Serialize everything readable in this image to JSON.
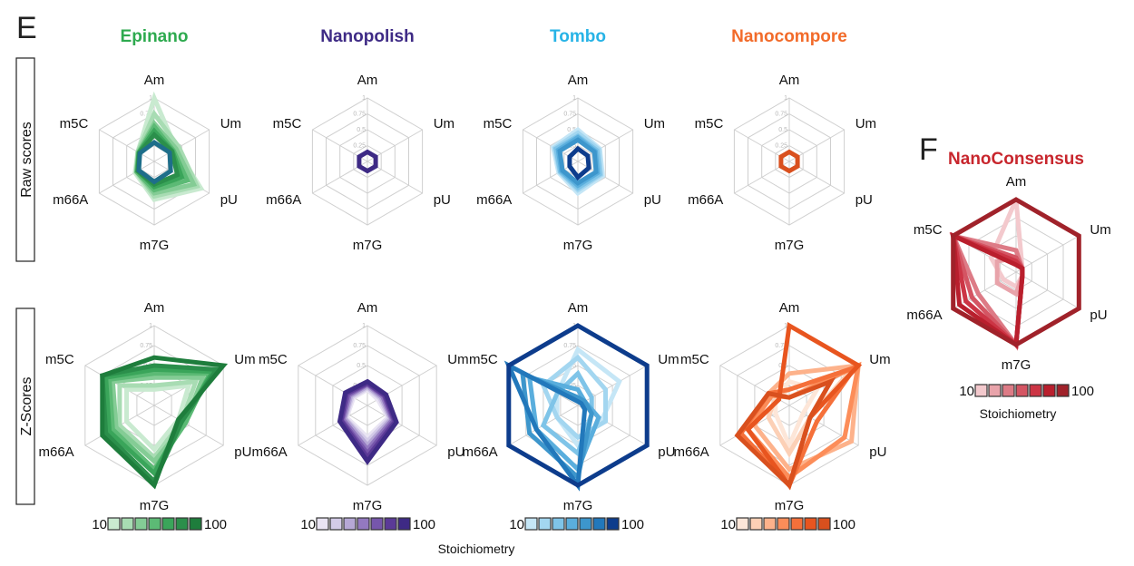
{
  "figure": {
    "panel_e_letter": "E",
    "panel_f_letter": "F",
    "row_labels": [
      "Raw scores",
      "Z-Scores"
    ],
    "stoichiometry_label": "Stoichiometry",
    "nanoconsensus_stoichiometry_label": "Stoichiometry"
  },
  "chart_data": [
    {
      "type": "radar",
      "panel": "E",
      "row": "Raw scores",
      "title": "Epinano",
      "title_color": "#2eaa4f",
      "axes": [
        "Am",
        "Um",
        "pU",
        "m7G",
        "m66A",
        "m5C"
      ],
      "range": [
        0,
        1
      ],
      "ticks": [
        "0.25",
        "0.5",
        "0.75",
        "1"
      ],
      "palette": [
        "#c9ead0",
        "#a8dcb3",
        "#84cc95",
        "#5cba75",
        "#3aa55a",
        "#2b8f4b",
        "#1e6e8a"
      ],
      "series": [
        {
          "values": [
            1.0,
            0.4,
            0.85,
            0.6,
            0.35,
            0.3
          ]
        },
        {
          "values": [
            0.75,
            0.45,
            0.78,
            0.55,
            0.33,
            0.3
          ]
        },
        {
          "values": [
            0.6,
            0.4,
            0.72,
            0.5,
            0.32,
            0.29
          ]
        },
        {
          "values": [
            0.55,
            0.35,
            0.6,
            0.45,
            0.32,
            0.28
          ]
        },
        {
          "values": [
            0.48,
            0.33,
            0.5,
            0.4,
            0.3,
            0.28
          ]
        },
        {
          "values": [
            0.42,
            0.32,
            0.42,
            0.36,
            0.3,
            0.27
          ]
        },
        {
          "values": [
            0.3,
            0.28,
            0.3,
            0.32,
            0.28,
            0.26
          ]
        }
      ]
    },
    {
      "type": "radar",
      "panel": "E",
      "row": "Raw scores",
      "title": "Nanopolish",
      "title_color": "#3e2a85",
      "axes": [
        "Am",
        "Um",
        "pU",
        "m7G",
        "m66A",
        "m5C"
      ],
      "range": [
        0,
        1
      ],
      "ticks": [
        "0.25",
        "0.5",
        "0.75",
        "1"
      ],
      "palette": [
        "#3e2a85"
      ],
      "series": [
        {
          "values": [
            0.15,
            0.15,
            0.15,
            0.15,
            0.15,
            0.15
          ]
        }
      ]
    },
    {
      "type": "radar",
      "panel": "E",
      "row": "Raw scores",
      "title": "Tombo",
      "title_color": "#27b3e6",
      "axes": [
        "Am",
        "Um",
        "pU",
        "m7G",
        "m66A",
        "m5C"
      ],
      "range": [
        0,
        1
      ],
      "ticks": [
        "0.25",
        "0.5",
        "0.75",
        "1"
      ],
      "palette": [
        "#c5e6f6",
        "#a3d6f0",
        "#7fc4e8",
        "#5aaedd",
        "#3d96cc",
        "#0d3c8c"
      ],
      "series": [
        {
          "values": [
            0.5,
            0.4,
            0.45,
            0.5,
            0.35,
            0.45
          ]
        },
        {
          "values": [
            0.45,
            0.38,
            0.42,
            0.45,
            0.33,
            0.42
          ]
        },
        {
          "values": [
            0.4,
            0.35,
            0.4,
            0.42,
            0.32,
            0.4
          ]
        },
        {
          "values": [
            0.38,
            0.32,
            0.36,
            0.38,
            0.3,
            0.36
          ]
        },
        {
          "values": [
            0.34,
            0.3,
            0.33,
            0.34,
            0.28,
            0.33
          ]
        },
        {
          "values": [
            0.2,
            0.18,
            0.2,
            0.25,
            0.15,
            0.15
          ]
        }
      ]
    },
    {
      "type": "radar",
      "panel": "E",
      "row": "Raw scores",
      "title": "Nanocompore",
      "title_color": "#f26b2a",
      "axes": [
        "Am",
        "Um",
        "pU",
        "m7G",
        "m66A",
        "m5C"
      ],
      "range": [
        0,
        1
      ],
      "ticks": [
        "0.25",
        "0.5",
        "0.75",
        "1"
      ],
      "palette": [
        "#d9501e"
      ],
      "series": [
        {
          "values": [
            0.15,
            0.15,
            0.15,
            0.15,
            0.15,
            0.15
          ]
        }
      ]
    },
    {
      "type": "radar",
      "panel": "E",
      "row": "Z-Scores",
      "axes": [
        "Am",
        "Um",
        "pU",
        "m7G",
        "m66A",
        "m5C"
      ],
      "range": [
        0,
        1
      ],
      "ticks": [
        "0.25",
        "0.5",
        "0.75",
        "1"
      ],
      "palette": [
        "#c9ead0",
        "#a8dcb3",
        "#84cc95",
        "#5cba75",
        "#3aa55a",
        "#2b8f4b",
        "#1e7d3c"
      ],
      "series": [
        {
          "values": [
            0.2,
            0.5,
            0.35,
            0.55,
            0.4,
            0.4
          ]
        },
        {
          "values": [
            0.25,
            0.6,
            0.4,
            0.65,
            0.5,
            0.5
          ]
        },
        {
          "values": [
            0.35,
            0.7,
            0.45,
            0.7,
            0.55,
            0.6
          ]
        },
        {
          "values": [
            0.4,
            0.8,
            0.45,
            0.8,
            0.6,
            0.65
          ]
        },
        {
          "values": [
            0.45,
            0.85,
            0.4,
            0.85,
            0.65,
            0.7
          ]
        },
        {
          "values": [
            0.5,
            0.9,
            0.4,
            0.95,
            0.7,
            0.75
          ]
        },
        {
          "values": [
            0.6,
            1.0,
            0.35,
            1.0,
            0.75,
            0.75
          ]
        }
      ]
    },
    {
      "type": "radar",
      "panel": "E",
      "row": "Z-Scores",
      "axes": [
        "Am",
        "Um",
        "pU",
        "m7G",
        "m66A",
        "m5C"
      ],
      "range": [
        0,
        1
      ],
      "ticks": [
        "0.25",
        "0.5",
        "0.75",
        "1"
      ],
      "palette": [
        "#e9e4f3",
        "#d3cbe8",
        "#b6a8d6",
        "#9379c0",
        "#7656ab",
        "#5b3a97",
        "#3e2a85"
      ],
      "series": [
        {
          "values": [
            0.2,
            0.15,
            0.3,
            0.4,
            0.3,
            0.2
          ]
        },
        {
          "values": [
            0.22,
            0.18,
            0.32,
            0.45,
            0.32,
            0.22
          ]
        },
        {
          "values": [
            0.24,
            0.2,
            0.34,
            0.5,
            0.33,
            0.24
          ]
        },
        {
          "values": [
            0.26,
            0.22,
            0.36,
            0.55,
            0.35,
            0.26
          ]
        },
        {
          "values": [
            0.27,
            0.24,
            0.38,
            0.6,
            0.37,
            0.28
          ]
        },
        {
          "values": [
            0.28,
            0.25,
            0.4,
            0.65,
            0.38,
            0.3
          ]
        },
        {
          "values": [
            0.3,
            0.27,
            0.42,
            0.7,
            0.4,
            0.32
          ]
        }
      ]
    },
    {
      "type": "radar",
      "panel": "E",
      "row": "Z-Scores",
      "axes": [
        "Am",
        "Um",
        "pU",
        "m7G",
        "m66A",
        "m5C"
      ],
      "range": [
        0,
        1
      ],
      "ticks": [
        "0.25",
        "0.5",
        "0.75",
        "1"
      ],
      "palette": [
        "#c5e6f6",
        "#a3d6f0",
        "#7fc4e8",
        "#5aaedd",
        "#3d96cc",
        "#2278bb",
        "#0d3c8c"
      ],
      "series": [
        {
          "values": [
            0.7,
            0.6,
            0.35,
            0.5,
            0.3,
            0.3
          ]
        },
        {
          "values": [
            0.6,
            0.4,
            0.4,
            0.4,
            0.3,
            0.5
          ]
        },
        {
          "values": [
            0.4,
            0.2,
            0.2,
            0.6,
            0.5,
            0.3
          ]
        },
        {
          "values": [
            0.2,
            0.1,
            0.3,
            0.8,
            0.6,
            0.7
          ]
        },
        {
          "values": [
            0.1,
            0.1,
            0.2,
            0.9,
            0.7,
            0.8
          ]
        },
        {
          "values": [
            0.05,
            0.05,
            0.1,
            1.0,
            0.6,
            1.0
          ]
        },
        {
          "values": [
            1.0,
            1.0,
            1.0,
            1.0,
            1.0,
            1.0
          ]
        }
      ]
    },
    {
      "type": "radar",
      "panel": "E",
      "row": "Z-Scores",
      "axes": [
        "Am",
        "Um",
        "pU",
        "m7G",
        "m66A",
        "m5C"
      ],
      "range": [
        0,
        1
      ],
      "ticks": [
        "0.25",
        "0.5",
        "0.75",
        "1"
      ],
      "palette": [
        "#fde6d8",
        "#fcd0b6",
        "#fdb28b",
        "#fc8d59",
        "#f5703a",
        "#e8551f",
        "#d9501e"
      ],
      "series": [
        {
          "values": [
            0.3,
            0.4,
            0.2,
            0.5,
            0.2,
            0.2
          ]
        },
        {
          "values": [
            0.2,
            0.9,
            0.3,
            0.6,
            0.3,
            0.2
          ]
        },
        {
          "values": [
            0.4,
            1.0,
            0.9,
            0.8,
            0.5,
            0.3
          ]
        },
        {
          "values": [
            0.1,
            1.0,
            0.8,
            0.9,
            0.6,
            0.25
          ]
        },
        {
          "values": [
            0.2,
            0.95,
            0.4,
            1.0,
            0.7,
            0.3
          ]
        },
        {
          "values": [
            1.0,
            1.0,
            0.3,
            1.0,
            0.6,
            0.15
          ]
        },
        {
          "values": [
            0.1,
            0.6,
            0.3,
            1.0,
            0.75,
            0.3
          ]
        }
      ]
    },
    {
      "type": "radar",
      "panel": "F",
      "title": "NanoConsensus",
      "title_color": "#c8262d",
      "axes": [
        "Am",
        "Um",
        "pU",
        "m7G",
        "m66A",
        "m5C"
      ],
      "range": [
        0,
        1
      ],
      "ticks": [],
      "palette": [
        "#f3c9cd",
        "#e8a3aa",
        "#dd7b86",
        "#d45563",
        "#cc3545",
        "#b91f2d",
        "#a0222a"
      ],
      "series": [
        {
          "values": [
            1.0,
            0.1,
            0.1,
            0.2,
            0.2,
            0.4
          ]
        },
        {
          "values": [
            0.2,
            0.1,
            0.1,
            0.3,
            0.3,
            0.3
          ]
        },
        {
          "values": [
            0.3,
            0.1,
            0.1,
            1.0,
            0.6,
            1.0
          ]
        },
        {
          "values": [
            0.2,
            0.1,
            0.1,
            1.0,
            0.7,
            1.0
          ]
        },
        {
          "values": [
            0.15,
            0.1,
            0.1,
            1.0,
            0.8,
            1.0
          ]
        },
        {
          "values": [
            0.1,
            0.1,
            0.1,
            1.0,
            0.9,
            1.0
          ]
        },
        {
          "values": [
            1.0,
            1.0,
            1.0,
            1.0,
            1.0,
            1.0
          ]
        }
      ]
    }
  ],
  "legends": [
    {
      "palette": [
        "#c9ead0",
        "#a8dcb3",
        "#84cc95",
        "#5cba75",
        "#3aa55a",
        "#2b8f4b",
        "#1e7d3c"
      ],
      "min_label": "10",
      "max_label": "100"
    },
    {
      "palette": [
        "#e9e4f3",
        "#d3cbe8",
        "#b6a8d6",
        "#9379c0",
        "#7656ab",
        "#5b3a97",
        "#3e2a85"
      ],
      "min_label": "10",
      "max_label": "100"
    },
    {
      "palette": [
        "#c5e6f6",
        "#a3d6f0",
        "#7fc4e8",
        "#5aaedd",
        "#3d96cc",
        "#2278bb",
        "#0d3c8c"
      ],
      "min_label": "10",
      "max_label": "100"
    },
    {
      "palette": [
        "#fde6d8",
        "#fcd0b6",
        "#fdb28b",
        "#fc8d59",
        "#f5703a",
        "#e8551f",
        "#d9501e"
      ],
      "min_label": "10",
      "max_label": "100"
    },
    {
      "palette": [
        "#f3c9cd",
        "#e8a3aa",
        "#dd7b86",
        "#d45563",
        "#cc3545",
        "#b91f2d",
        "#a0222a"
      ],
      "min_label": "10",
      "max_label": "100"
    }
  ]
}
